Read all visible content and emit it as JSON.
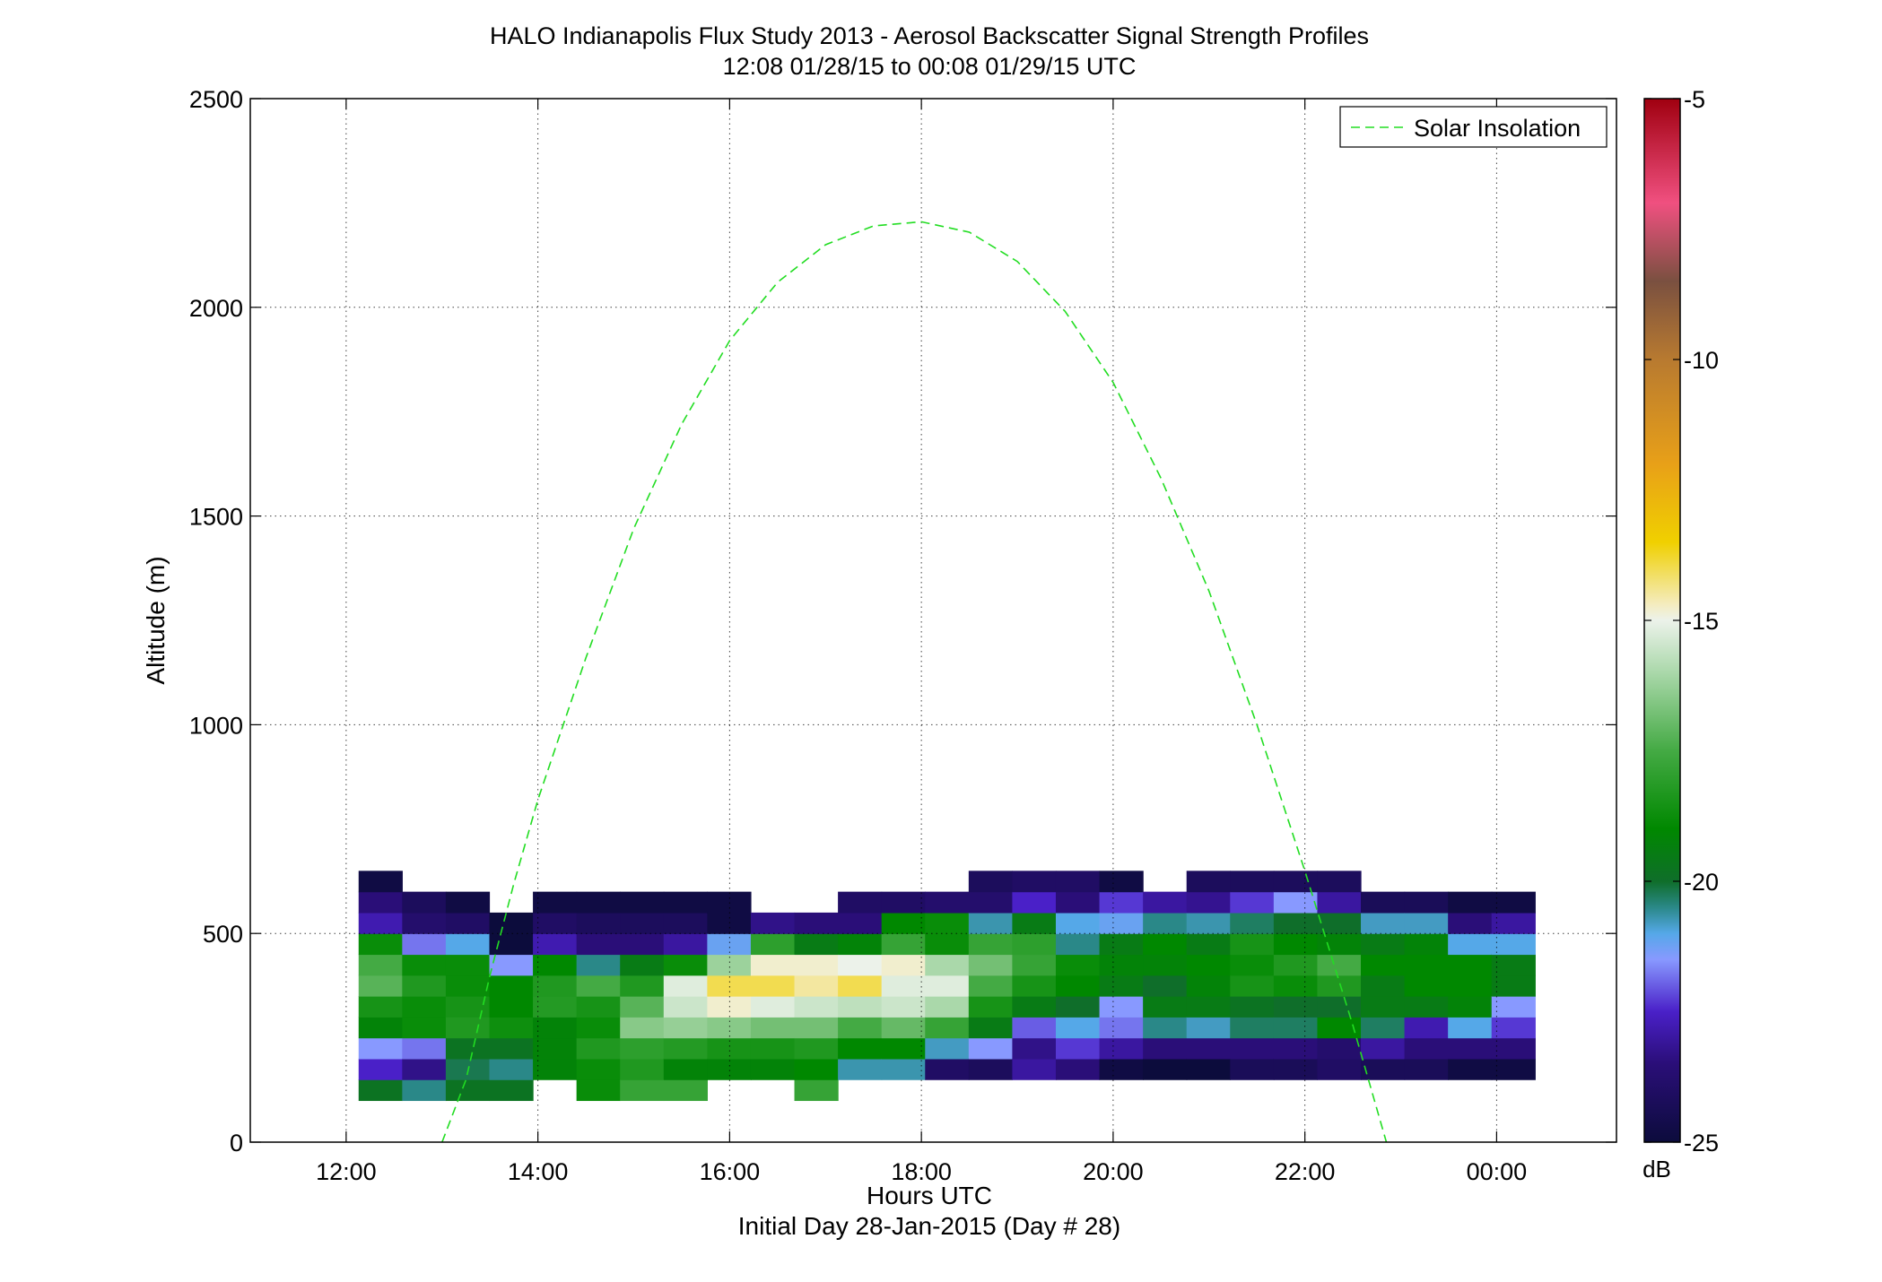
{
  "chart_data": {
    "type": "heatmap",
    "title": "HALO Indianapolis Flux Study 2013 - Aerosol Backscatter Signal Strength Profiles",
    "subtitle": "12:08 01/28/15 to 00:08 01/29/15  UTC",
    "xlabel": "Hours UTC",
    "xlabel2": "Initial Day 28-Jan-2015 (Day # 28)",
    "ylabel": "Altitude (m)",
    "xlim": [
      11,
      25.25
    ],
    "ylim": [
      0,
      2500
    ],
    "xticks": [
      12,
      14,
      16,
      18,
      20,
      22,
      24
    ],
    "xtick_labels": [
      "12:00",
      "14:00",
      "16:00",
      "18:00",
      "20:00",
      "22:00",
      "00:00"
    ],
    "yticks": [
      0,
      500,
      1000,
      1500,
      2000,
      2500
    ],
    "ytick_labels": [
      "0",
      "500",
      "1000",
      "1500",
      "2000",
      "2500"
    ],
    "grid": true,
    "legend": {
      "position": "top-right",
      "entries": [
        {
          "label": "Solar Insolation",
          "color": "#22dd22",
          "style": "dashed"
        }
      ]
    },
    "colorbar": {
      "label": "dB",
      "range": [
        -25,
        -5
      ],
      "ticks": [
        -5,
        -10,
        -15,
        -20,
        -25
      ],
      "tick_labels": [
        "-5",
        "-10",
        "-15",
        "-20",
        "-25"
      ],
      "stops": [
        {
          "v": -25,
          "c": "#0c0c3c"
        },
        {
          "v": -23.5,
          "c": "#2a0e78"
        },
        {
          "v": -22.5,
          "c": "#4a20c8"
        },
        {
          "v": -21.5,
          "c": "#8899ff"
        },
        {
          "v": -21,
          "c": "#55a8e8"
        },
        {
          "v": -20.5,
          "c": "#2a8888"
        },
        {
          "v": -20,
          "c": "#0f6e2a"
        },
        {
          "v": -19,
          "c": "#008800"
        },
        {
          "v": -17.5,
          "c": "#44aa44"
        },
        {
          "v": -16,
          "c": "#aad8aa"
        },
        {
          "v": -15,
          "c": "#ecf2ea"
        },
        {
          "v": -14.7,
          "c": "#f4ecc0"
        },
        {
          "v": -13.5,
          "c": "#f0d000"
        },
        {
          "v": -12,
          "c": "#e8a018"
        },
        {
          "v": -10,
          "c": "#b87a30"
        },
        {
          "v": -8.5,
          "c": "#7a5040"
        },
        {
          "v": -7,
          "c": "#f05080"
        },
        {
          "v": -5,
          "c": "#a00010"
        }
      ]
    },
    "cell_time_start": 12.13,
    "cell_time_width": 0.4545,
    "cell_alt_start": 100,
    "cell_alt_height": 50,
    "columns": [
      [
        -19.8,
        -22.5,
        -21.5,
        -19.2,
        -18.5,
        -17.2,
        -17.5,
        -18.8,
        -22.8,
        -23.5,
        -24.8
      ],
      [
        -20.5,
        -23.3,
        -21.8,
        -18.8,
        -18.8,
        -18.3,
        -18.8,
        -21.8,
        -23.8,
        -24.2,
        -99
      ],
      [
        -19.8,
        -20.2,
        -19.8,
        -18.3,
        -18.5,
        -18.8,
        -18.8,
        -21.0,
        -24.0,
        -24.8,
        -99
      ],
      [
        -19.8,
        -20.5,
        -19.8,
        -18.7,
        -19.0,
        -19.0,
        -21.5,
        -25.0,
        -25.0,
        -99,
        -99
      ],
      [
        -99,
        -19.2,
        -19.2,
        -19.2,
        -18.2,
        -18.3,
        -19.0,
        -22.8,
        -24.0,
        -24.8,
        -99
      ],
      [
        -18.8,
        -18.8,
        -18.3,
        -18.8,
        -18.5,
        -17.5,
        -20.5,
        -23.5,
        -24.2,
        -24.8,
        -99
      ],
      [
        -17.8,
        -18.3,
        -18.0,
        -16.5,
        -17.2,
        -18.3,
        -19.5,
        -23.5,
        -24.2,
        -24.8,
        -99
      ],
      [
        -17.8,
        -19.2,
        -18.2,
        -16.3,
        -15.5,
        -15.2,
        -18.8,
        -23.0,
        -24.2,
        -24.8,
        -99
      ],
      [
        -99,
        -19.2,
        -18.5,
        -16.5,
        -14.8,
        -14.0,
        -16.2,
        -21.2,
        -24.8,
        -24.8,
        -99
      ],
      [
        -99,
        -19.2,
        -18.5,
        -16.8,
        -15.2,
        -14.0,
        -14.8,
        -18.0,
        -23.3,
        -99,
        -99
      ],
      [
        -17.8,
        -19.0,
        -18.3,
        -16.8,
        -15.5,
        -14.5,
        -14.8,
        -19.5,
        -23.5,
        -99,
        -99
      ],
      [
        -99,
        -20.7,
        -19.0,
        -17.5,
        -15.7,
        -14.0,
        -15.0,
        -19.2,
        -23.5,
        -24.0,
        -99
      ],
      [
        -99,
        -20.7,
        -19.0,
        -17.0,
        -15.5,
        -15.2,
        -14.8,
        -17.8,
        -19.0,
        -24.0,
        -99
      ],
      [
        -99,
        -24.0,
        -20.8,
        -17.8,
        -16.0,
        -15.2,
        -16.0,
        -18.8,
        -18.8,
        -23.8,
        -99
      ],
      [
        -99,
        -24.2,
        -21.5,
        -19.5,
        -18.5,
        -17.5,
        -16.8,
        -17.8,
        -20.7,
        -23.8,
        -24.2
      ],
      [
        -99,
        -23.0,
        -23.3,
        -22.0,
        -19.5,
        -18.5,
        -17.8,
        -18.0,
        -19.5,
        -22.5,
        -24.0
      ],
      [
        -99,
        -23.5,
        -22.3,
        -21.0,
        -20.0,
        -19.0,
        -18.8,
        -20.5,
        -21.0,
        -23.5,
        -24.0
      ],
      [
        -99,
        -24.8,
        -23.0,
        -21.8,
        -21.5,
        -19.5,
        -19.2,
        -19.5,
        -21.2,
        -22.3,
        -24.8
      ],
      [
        -99,
        -25.0,
        -23.5,
        -20.5,
        -19.5,
        -20.0,
        -19.2,
        -19.0,
        -20.5,
        -23.0,
        -99
      ],
      [
        -99,
        -25.0,
        -23.5,
        -20.8,
        -19.5,
        -19.2,
        -19.0,
        -19.5,
        -20.7,
        -23.2,
        -24.2
      ],
      [
        -99,
        -24.3,
        -23.5,
        -20.3,
        -19.8,
        -18.5,
        -18.8,
        -18.5,
        -20.3,
        -22.3,
        -24.2
      ],
      [
        -99,
        -24.3,
        -23.5,
        -20.3,
        -20.0,
        -18.8,
        -18.3,
        -19.0,
        -20.0,
        -21.5,
        -24.2
      ],
      [
        -99,
        -24.0,
        -23.8,
        -19.0,
        -20.0,
        -18.3,
        -17.5,
        -19.2,
        -20.0,
        -23.0,
        -24.2
      ],
      [
        -99,
        -24.3,
        -23.0,
        -20.3,
        -19.5,
        -19.5,
        -19.0,
        -19.5,
        -20.8,
        -24.3,
        -99
      ],
      [
        -99,
        -24.3,
        -23.5,
        -22.8,
        -19.5,
        -19.0,
        -19.0,
        -19.2,
        -20.8,
        -24.3,
        -99
      ],
      [
        -99,
        -24.8,
        -23.5,
        -21.0,
        -19.2,
        -19.0,
        -19.0,
        -21.0,
        -23.5,
        -24.8,
        -99
      ],
      [
        -99,
        -24.8,
        -23.5,
        -22.3,
        -21.5,
        -19.5,
        -19.5,
        -21.0,
        -23.0,
        -24.8,
        -99
      ]
    ],
    "solar_curve": {
      "color": "#22dd22",
      "points": [
        [
          13.0,
          0
        ],
        [
          13.25,
          150
        ],
        [
          13.5,
          400
        ],
        [
          13.75,
          620
        ],
        [
          14.0,
          820
        ],
        [
          14.5,
          1160
        ],
        [
          15.0,
          1470
        ],
        [
          15.5,
          1720
        ],
        [
          16.0,
          1920
        ],
        [
          16.5,
          2060
        ],
        [
          17.0,
          2150
        ],
        [
          17.5,
          2195
        ],
        [
          18.0,
          2205
        ],
        [
          18.5,
          2180
        ],
        [
          19.0,
          2110
        ],
        [
          19.5,
          1990
        ],
        [
          20.0,
          1820
        ],
        [
          20.5,
          1590
        ],
        [
          21.0,
          1320
        ],
        [
          21.5,
          1000
        ],
        [
          22.0,
          650
        ],
        [
          22.5,
          280
        ],
        [
          22.85,
          0
        ]
      ]
    }
  }
}
